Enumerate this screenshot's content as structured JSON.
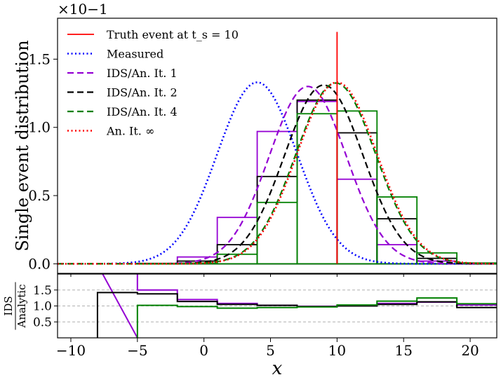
{
  "chart_data": [
    {
      "type": "line",
      "panel": "main",
      "ylabel": "Single event distribution",
      "scale_label": "×10−1",
      "xlim": [
        -11,
        22
      ],
      "ylim": [
        -0.07,
        1.8
      ],
      "yticks": [
        0.0,
        0.5,
        1.0,
        1.5
      ],
      "ytick_labels": [
        "0.0",
        "0.5",
        "1.0",
        "1.5"
      ],
      "grid": false,
      "legend_position": "top-left",
      "truth": {
        "name": "Truth event at t_s = 10",
        "x": 10,
        "y": [
          0,
          1.7
        ],
        "color": "#ff0000"
      },
      "curves": [
        {
          "name": "Measured",
          "dash": "dotted",
          "color": "#0000ff",
          "mean": 4,
          "sigma": 3,
          "peak": 1.33
        },
        {
          "name": "IDS/An. It. 1",
          "dash": "dashed",
          "color": "#9400d3",
          "mean": 7.8,
          "sigma": 2.9,
          "peak": 1.3
        },
        {
          "name": "IDS/An. It. 2",
          "dash": "dashed",
          "color": "#000000",
          "mean": 9.0,
          "sigma": 2.95,
          "peak": 1.31
        },
        {
          "name": "IDS/An. It. 4",
          "dash": "dashed",
          "color": "#008000",
          "mean": 9.9,
          "sigma": 3.0,
          "peak": 1.325
        },
        {
          "name": "An. It. ∞",
          "dash": "dotted",
          "color": "#ff0000",
          "mean": 10,
          "sigma": 3.0,
          "peak": 1.33
        }
      ],
      "histograms": [
        {
          "color": "#9400d3",
          "edges": [
            -8,
            -5,
            -2,
            1,
            4,
            7,
            10,
            13,
            16,
            19,
            22
          ],
          "values": [
            0.0,
            0.002,
            0.05,
            0.34,
            0.97,
            1.19,
            0.62,
            0.14,
            0.02,
            0.002
          ]
        },
        {
          "color": "#000000",
          "edges": [
            -8,
            -5,
            -2,
            1,
            4,
            7,
            10,
            13,
            16,
            19,
            22
          ],
          "values": [
            0.0,
            0.003,
            0.02,
            0.14,
            0.64,
            1.2,
            0.96,
            0.33,
            0.04,
            0.003
          ]
        },
        {
          "color": "#008000",
          "edges": [
            -8,
            -5,
            -2,
            1,
            4,
            7,
            10,
            13,
            16,
            19,
            22
          ],
          "values": [
            0.0,
            0.001,
            0.005,
            0.07,
            0.45,
            1.1,
            1.12,
            0.49,
            0.08,
            0.006
          ]
        }
      ]
    },
    {
      "type": "line",
      "panel": "ratio",
      "xlabel": "x",
      "ylabel_num": "IDS",
      "ylabel_den": "Analytic",
      "xlim": [
        -11,
        22
      ],
      "ylim": [
        0,
        2.0
      ],
      "xticks": [
        -10,
        -5,
        0,
        5,
        10,
        15,
        20
      ],
      "xtick_labels": [
        "−10",
        "−5",
        "0",
        "5",
        "10",
        "15",
        "20"
      ],
      "yticks": [
        0.5,
        1.0,
        1.5
      ],
      "ytick_labels": [
        "0.5",
        "1.0",
        "1.5"
      ],
      "grid": "horizontal dashed",
      "series": [
        {
          "color": "#9400d3",
          "edges": [
            -8,
            -5,
            -2,
            1,
            4,
            7,
            10,
            13,
            16,
            19,
            22
          ],
          "values": [
            2.3,
            1.5,
            1.2,
            1.08,
            1.02,
            0.99,
            1.01,
            1.08,
            1.12,
            1.03
          ],
          "drop_from": -5
        },
        {
          "color": "#000000",
          "edges": [
            -8,
            -5,
            -2,
            1,
            4,
            7,
            10,
            13,
            16,
            19,
            22
          ],
          "values": [
            1.42,
            1.38,
            1.14,
            1.05,
            1.02,
            0.98,
            1.0,
            1.05,
            1.13,
            0.95
          ],
          "drop_from": -8
        },
        {
          "color": "#008000",
          "edges": [
            -5,
            -2,
            1,
            4,
            7,
            10,
            13,
            16,
            19,
            22
          ],
          "values": [
            1.02,
            0.98,
            0.93,
            0.95,
            0.97,
            1.03,
            1.15,
            1.25,
            1.07
          ],
          "drop_from": -5
        }
      ]
    }
  ]
}
